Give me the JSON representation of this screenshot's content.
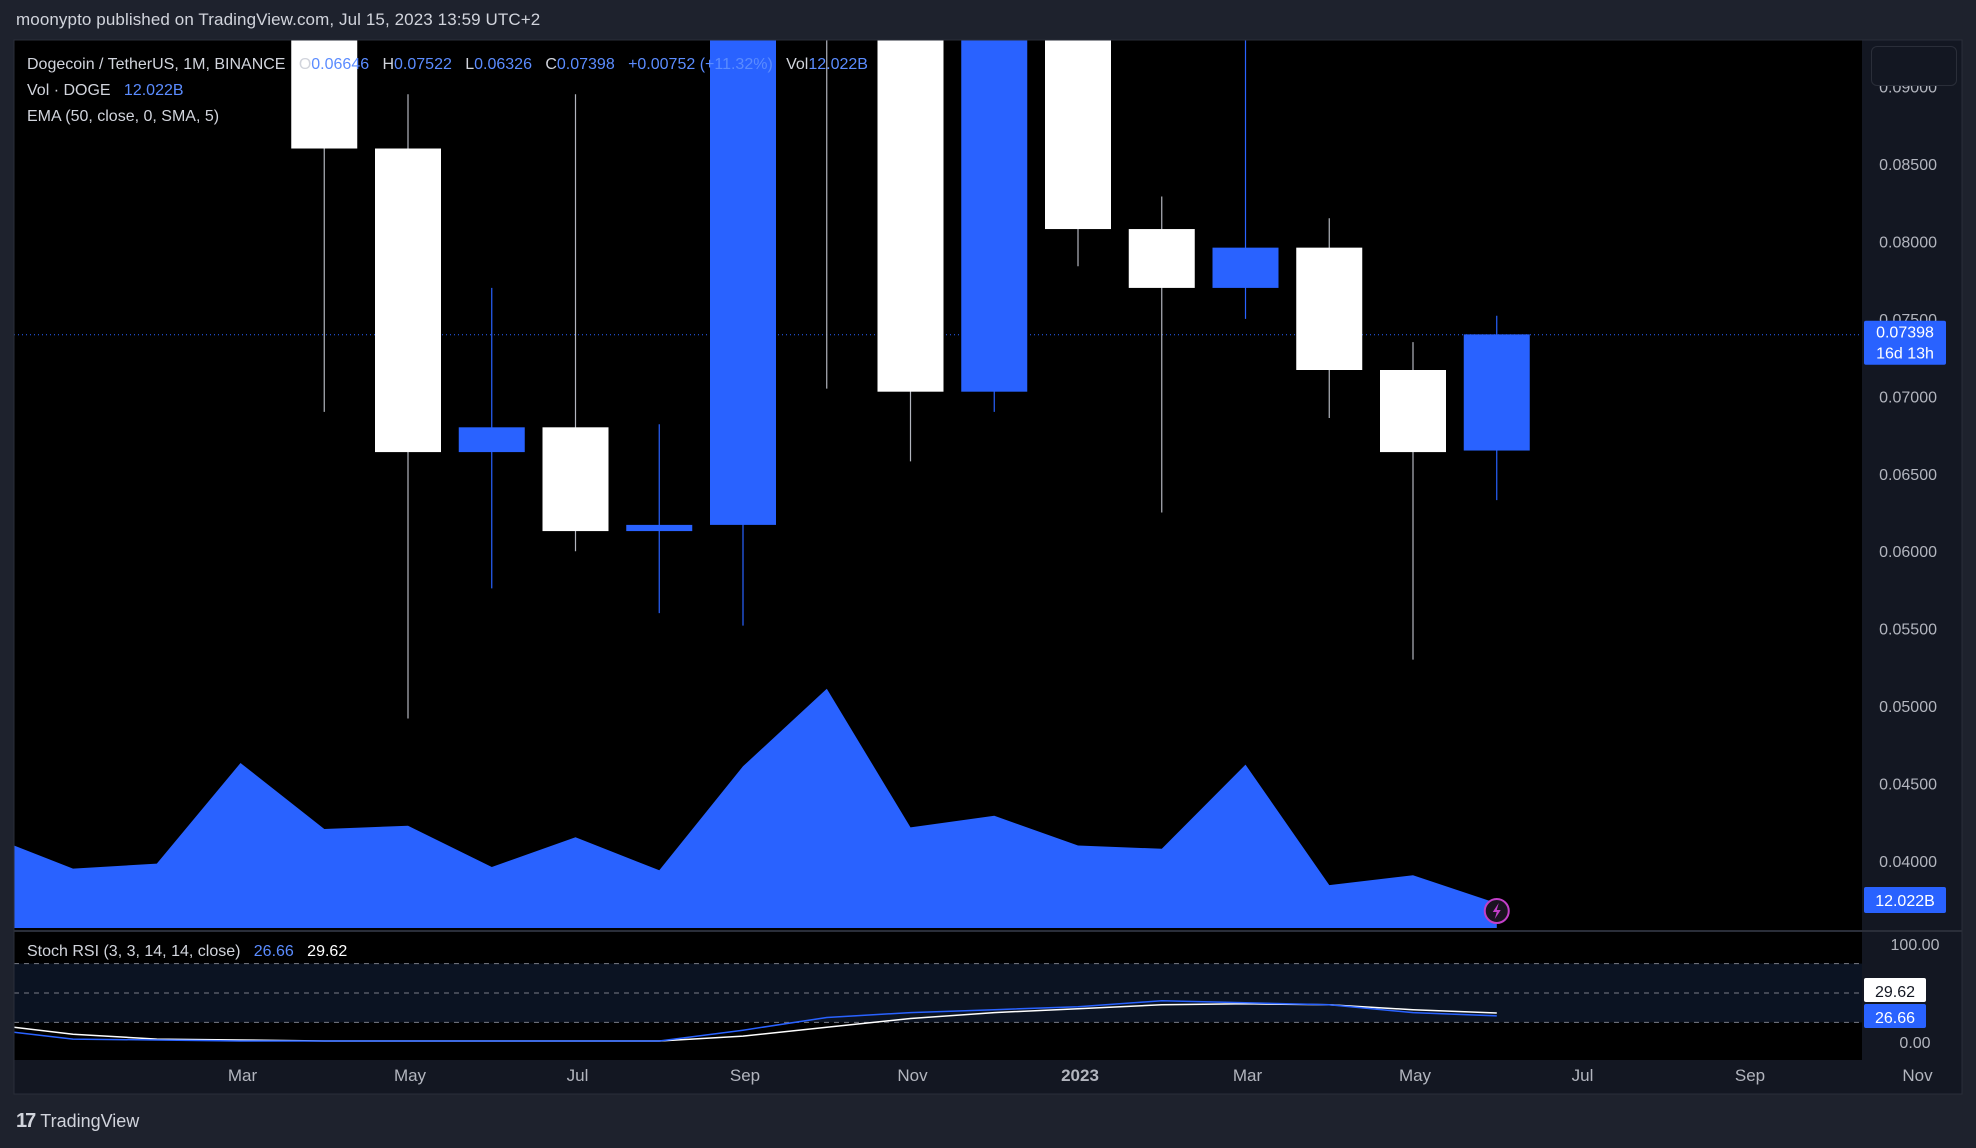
{
  "header": {
    "publisher_line": "moonypto published on TradingView.com, Jul 15, 2023 13:59 UTC+2"
  },
  "legend": {
    "symbol": "Dogecoin / TetherUS, 1M, BINANCE",
    "o_label": "O",
    "o_value": "0.06646",
    "h_label": "H",
    "h_value": "0.07522",
    "l_label": "L",
    "l_value": "0.06326",
    "c_label": "C",
    "c_value": "0.07398",
    "change": "+0.00752 (+11.32%)",
    "vol_label": "Vol",
    "vol_value": "12.022B",
    "vol_row_label": "Vol · DOGE",
    "vol_row_value": "12.022B",
    "ema_row": "EMA (50, close, 0, SMA, 5)"
  },
  "stoch_legend": {
    "label": "Stoch RSI (3, 3, 14, 14, close)",
    "k_value": "26.66",
    "d_value": "29.62"
  },
  "footer": {
    "brand": "TradingView"
  },
  "colors": {
    "background": "#000000",
    "frame": "#1e222d",
    "up": "#ffffff",
    "down": "#2962ff",
    "volume": "#2962ff",
    "stoch_k": "#2962ff",
    "stoch_d": "#ffffff",
    "grid_dash": "#787b86"
  },
  "chart_data": {
    "type": "candlestick",
    "price_axis": {
      "ticks": [
        "0.09000",
        "0.08500",
        "0.08000",
        "0.07500",
        "0.07000",
        "0.06500",
        "0.06000",
        "0.05500",
        "0.05000",
        "0.04500",
        "0.04000"
      ],
      "tick_values": [
        0.09,
        0.085,
        0.08,
        0.075,
        0.07,
        0.065,
        0.06,
        0.055,
        0.05,
        0.045,
        0.04
      ],
      "last_price_label": "0.07398",
      "countdown_label": "16d 13h",
      "volume_label": "12.022B"
    },
    "time_axis": {
      "labels": [
        "Mar",
        "May",
        "Jul",
        "Sep",
        "Nov",
        "2023",
        "Mar",
        "May",
        "Jul",
        "Sep",
        "Nov"
      ],
      "label_months": [
        2,
        4,
        6,
        8,
        10,
        12,
        14,
        16,
        18,
        20,
        22
      ]
    },
    "candles": [
      {
        "month": 3,
        "open": 0.0958,
        "high": 0.104,
        "low": 0.069,
        "close": 0.086,
        "color": "up"
      },
      {
        "month": 4,
        "open": 0.086,
        "high": 0.0895,
        "low": 0.0492,
        "close": 0.0664,
        "color": "up"
      },
      {
        "month": 5,
        "open": 0.0664,
        "high": 0.077,
        "low": 0.0576,
        "close": 0.068,
        "color": "down"
      },
      {
        "month": 6,
        "open": 0.068,
        "high": 0.0895,
        "low": 0.06,
        "close": 0.0613,
        "color": "up"
      },
      {
        "month": 7,
        "open": 0.0613,
        "high": 0.0682,
        "low": 0.056,
        "close": 0.0617,
        "color": "down"
      },
      {
        "month": 8,
        "open": 0.0617,
        "high": 0.115,
        "low": 0.0552,
        "close": 0.11,
        "color": "down"
      },
      {
        "month": 9,
        "open": 0.11,
        "high": 0.13,
        "low": 0.0705,
        "close": 0.12,
        "color": "up"
      },
      {
        "month": 10,
        "open": 0.12,
        "high": 0.13,
        "low": 0.0658,
        "close": 0.0703,
        "color": "up"
      },
      {
        "month": 11,
        "open": 0.0703,
        "high": 0.14,
        "low": 0.069,
        "close": 0.1,
        "color": "down"
      },
      {
        "month": 12,
        "open": 0.096,
        "high": 0.101,
        "low": 0.0784,
        "close": 0.0808,
        "color": "up"
      },
      {
        "month": 13,
        "open": 0.0808,
        "high": 0.0829,
        "low": 0.0625,
        "close": 0.077,
        "color": "up"
      },
      {
        "month": 14,
        "open": 0.077,
        "high": 0.0935,
        "low": 0.075,
        "close": 0.0796,
        "color": "down"
      },
      {
        "month": 15,
        "open": 0.0796,
        "high": 0.0815,
        "low": 0.0686,
        "close": 0.0717,
        "color": "up"
      },
      {
        "month": 16,
        "open": 0.0717,
        "high": 0.0735,
        "low": 0.053,
        "close": 0.0664,
        "color": "up"
      },
      {
        "month": 17,
        "open": 0.0665,
        "high": 0.0752,
        "low": 0.0633,
        "close": 0.074,
        "color": "down"
      }
    ],
    "volume_area": {
      "note": "relative volume levels",
      "points": [
        {
          "month": -1,
          "level": 0.5
        },
        {
          "month": 0,
          "level": 0.36
        },
        {
          "month": 1,
          "level": 0.39
        },
        {
          "month": 2,
          "level": 1.0
        },
        {
          "month": 3,
          "level": 0.6
        },
        {
          "month": 4,
          "level": 0.62
        },
        {
          "month": 5,
          "level": 0.37
        },
        {
          "month": 6,
          "level": 0.55
        },
        {
          "month": 7,
          "level": 0.35
        },
        {
          "month": 8,
          "level": 0.98
        },
        {
          "month": 9,
          "level": 1.45
        },
        {
          "month": 10,
          "level": 0.61
        },
        {
          "month": 11,
          "level": 0.68
        },
        {
          "month": 12,
          "level": 0.5
        },
        {
          "month": 13,
          "level": 0.48
        },
        {
          "month": 14,
          "level": 0.99
        },
        {
          "month": 15,
          "level": 0.26
        },
        {
          "month": 16,
          "level": 0.32
        },
        {
          "month": 17,
          "level": 0.15
        }
      ]
    },
    "stoch_rsi": {
      "axis_labels": [
        "100.00",
        "0.00"
      ],
      "axis_values": [
        100,
        0
      ],
      "k_label": "26.66",
      "d_label": "29.62",
      "k": [
        {
          "month": -1,
          "value": 10
        },
        {
          "month": 0,
          "value": 3
        },
        {
          "month": 1,
          "value": 2
        },
        {
          "month": 2,
          "value": 1
        },
        {
          "month": 3,
          "value": 1
        },
        {
          "month": 4,
          "value": 1
        },
        {
          "month": 5,
          "value": 1
        },
        {
          "month": 6,
          "value": 1
        },
        {
          "month": 7,
          "value": 1
        },
        {
          "month": 8,
          "value": 12
        },
        {
          "month": 9,
          "value": 25
        },
        {
          "month": 10,
          "value": 30
        },
        {
          "month": 11,
          "value": 33
        },
        {
          "month": 12,
          "value": 36
        },
        {
          "month": 13,
          "value": 42
        },
        {
          "month": 14,
          "value": 40
        },
        {
          "month": 15,
          "value": 38
        },
        {
          "month": 16,
          "value": 30
        },
        {
          "month": 17,
          "value": 26.66
        }
      ],
      "d": [
        {
          "month": -1,
          "value": 15
        },
        {
          "month": 0,
          "value": 8
        },
        {
          "month": 1,
          "value": 3
        },
        {
          "month": 2,
          "value": 2
        },
        {
          "month": 3,
          "value": 1
        },
        {
          "month": 4,
          "value": 1
        },
        {
          "month": 5,
          "value": 1
        },
        {
          "month": 6,
          "value": 1
        },
        {
          "month": 7,
          "value": 1
        },
        {
          "month": 8,
          "value": 6
        },
        {
          "month": 9,
          "value": 15
        },
        {
          "month": 10,
          "value": 24
        },
        {
          "month": 11,
          "value": 30
        },
        {
          "month": 12,
          "value": 34
        },
        {
          "month": 13,
          "value": 38
        },
        {
          "month": 14,
          "value": 39
        },
        {
          "month": 15,
          "value": 38
        },
        {
          "month": 16,
          "value": 33
        },
        {
          "month": 17,
          "value": 29.62
        }
      ],
      "levels": [
        80,
        50,
        20
      ]
    }
  }
}
